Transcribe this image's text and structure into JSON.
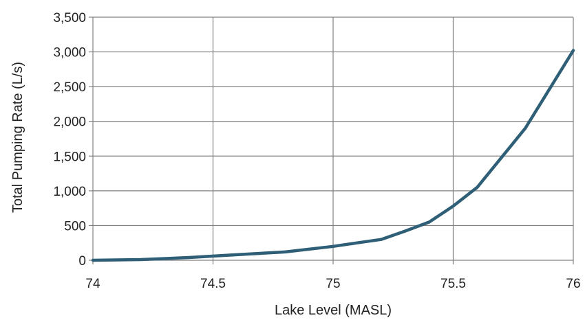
{
  "chart_data": {
    "type": "line",
    "xlabel": "Lake Level (MASL)",
    "ylabel": "Total Pumping Rate (L/s)",
    "xlim": [
      74,
      76
    ],
    "ylim": [
      0,
      3500
    ],
    "x_ticks": [
      74,
      74.5,
      75,
      75.5,
      76
    ],
    "x_tick_labels": [
      "74",
      "74.5",
      "75",
      "75.5",
      "76"
    ],
    "y_ticks": [
      0,
      500,
      1000,
      1500,
      2000,
      2500,
      3000,
      3500
    ],
    "y_tick_labels": [
      "0",
      "500",
      "1,000",
      "1,500",
      "2,000",
      "2,500",
      "3,000",
      "3,500"
    ],
    "grid": true,
    "legend": "none",
    "series": [
      {
        "color": "#2e5f77",
        "x": [
          74,
          74.2,
          74.4,
          74.6,
          74.8,
          75,
          75.1,
          75.2,
          75.3,
          75.4,
          75.5,
          75.6,
          75.8,
          76
        ],
        "y": [
          0,
          10,
          40,
          80,
          120,
          200,
          250,
          300,
          420,
          550,
          780,
          1050,
          1900,
          3020
        ]
      }
    ]
  }
}
